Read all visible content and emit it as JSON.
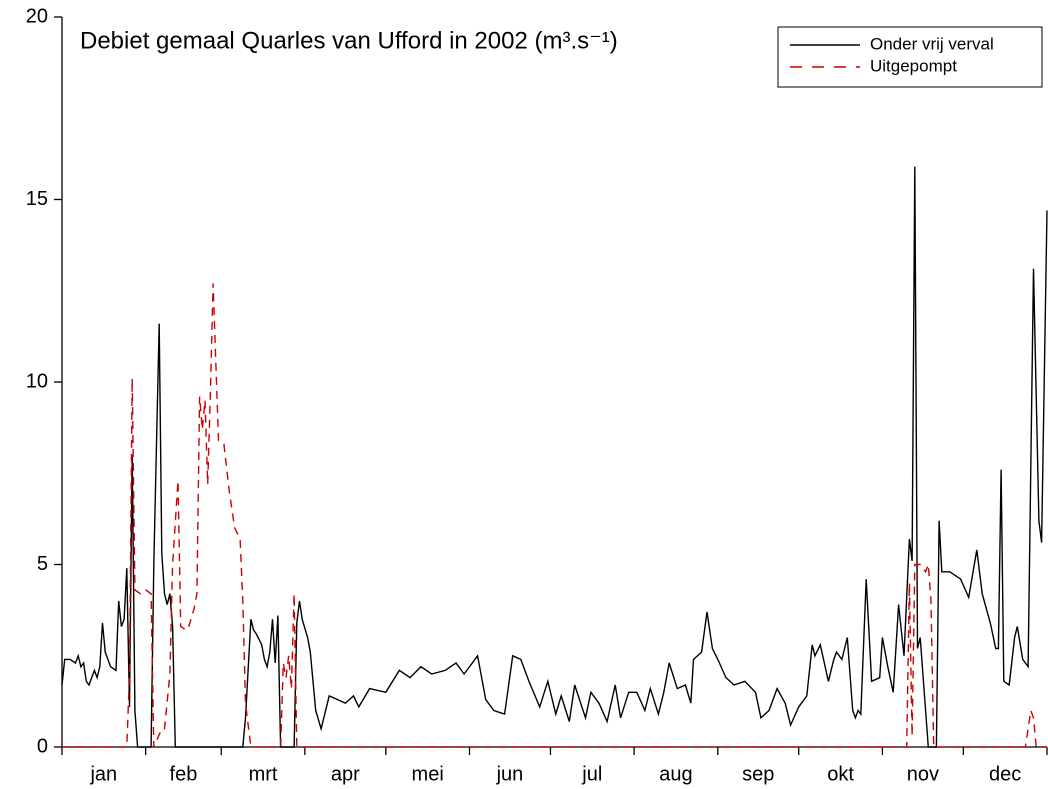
{
  "chart_data": {
    "type": "line",
    "title": "Debiet gemaal Quarles van Ufford in 2002 (m³.s⁻¹)",
    "xlim": [
      0,
      365
    ],
    "xticks": [
      {
        "value": 15.5,
        "label": "jan"
      },
      {
        "value": 45,
        "label": "feb"
      },
      {
        "value": 74.5,
        "label": "mrt"
      },
      {
        "value": 105,
        "label": "apr"
      },
      {
        "value": 135.5,
        "label": "mei"
      },
      {
        "value": 166,
        "label": "jun"
      },
      {
        "value": 196.5,
        "label": "jul"
      },
      {
        "value": 227.5,
        "label": "aug"
      },
      {
        "value": 258,
        "label": "sep"
      },
      {
        "value": 288.5,
        "label": "okt"
      },
      {
        "value": 319,
        "label": "nov"
      },
      {
        "value": 349.5,
        "label": "dec"
      }
    ],
    "xtick_marks": [
      0,
      31,
      59,
      90,
      120,
      151,
      181,
      212,
      243,
      273,
      304,
      334,
      365
    ],
    "ylim": [
      0,
      20
    ],
    "yticks": [
      0,
      5,
      10,
      15,
      20
    ],
    "legend": "upper right",
    "series": [
      {
        "name": "Onder vrij verval",
        "color": "#000000",
        "style": "solid",
        "x": [
          0,
          1,
          3,
          5,
          6,
          7,
          8,
          9,
          10,
          11,
          12,
          13,
          14,
          15,
          16,
          18,
          20,
          21,
          22,
          23,
          24,
          25,
          26,
          27,
          28,
          33,
          34,
          36,
          37,
          38,
          39,
          40,
          41,
          42,
          67,
          68,
          70,
          71,
          72,
          74,
          75,
          76,
          77,
          78,
          79,
          80,
          81,
          86,
          87,
          88,
          89,
          91,
          92,
          93,
          94,
          96,
          99,
          105,
          108,
          110,
          114,
          120,
          125,
          129,
          133,
          137,
          142,
          146,
          149,
          154,
          157,
          160,
          164,
          167,
          170,
          173,
          177,
          180,
          183,
          185,
          188,
          190,
          194,
          196,
          199,
          202,
          205,
          207,
          210,
          213,
          216,
          218,
          221,
          223,
          225,
          228,
          231,
          233,
          234,
          237,
          239,
          241,
          243,
          246,
          249,
          253,
          257,
          259,
          262,
          265,
          268,
          270,
          273,
          276,
          278,
          279,
          281,
          284,
          286,
          287,
          289,
          291,
          293,
          294,
          295,
          296,
          298,
          300,
          303,
          304,
          306,
          308,
          310,
          312,
          314,
          315,
          316,
          317,
          318,
          320,
          321,
          324,
          325,
          326,
          329,
          333,
          336,
          339,
          341,
          344,
          346,
          347,
          348,
          349,
          351,
          353,
          354,
          356,
          358,
          360,
          362,
          363,
          365
        ],
        "values": [
          1.7,
          2.4,
          2.4,
          2.3,
          2.5,
          2.2,
          2.3,
          1.8,
          1.7,
          1.9,
          2.1,
          1.9,
          2.2,
          3.4,
          2.6,
          2.2,
          2.1,
          4.0,
          3.3,
          3.5,
          4.9,
          1.1,
          8.0,
          1.0,
          0,
          0,
          5.0,
          11.6,
          5.3,
          4.2,
          3.9,
          4.2,
          3.3,
          0,
          0,
          0.8,
          3.5,
          3.2,
          3.1,
          2.8,
          2.4,
          2.2,
          2.6,
          3.5,
          2.3,
          3.6,
          0,
          0,
          3.4,
          4.0,
          3.5,
          3.0,
          2.6,
          1.8,
          1.0,
          0.5,
          1.4,
          1.2,
          1.4,
          1.1,
          1.6,
          1.5,
          2.1,
          1.9,
          2.2,
          2.0,
          2.1,
          2.3,
          2.0,
          2.5,
          1.3,
          1.0,
          0.9,
          2.5,
          2.4,
          1.8,
          1.1,
          1.8,
          0.9,
          1.4,
          0.7,
          1.7,
          0.8,
          1.5,
          1.2,
          0.7,
          1.7,
          0.8,
          1.5,
          1.5,
          1.0,
          1.6,
          0.9,
          1.5,
          2.3,
          1.6,
          1.7,
          1.2,
          2.4,
          2.6,
          3.7,
          2.7,
          2.4,
          1.9,
          1.7,
          1.8,
          1.5,
          0.8,
          1.0,
          1.6,
          1.2,
          0.6,
          1.1,
          1.4,
          2.8,
          2.5,
          2.8,
          1.8,
          2.4,
          2.6,
          2.4,
          3.0,
          1.0,
          0.8,
          1.0,
          0.9,
          4.6,
          1.8,
          1.9,
          3.0,
          2.2,
          1.5,
          3.9,
          2.5,
          5.7,
          5.1,
          15.9,
          2.7,
          3.0,
          1.0,
          0,
          0,
          6.2,
          4.8,
          4.8,
          4.6,
          4.1,
          5.4,
          4.2,
          3.4,
          2.7,
          2.7,
          7.6,
          1.8,
          1.7,
          3.0,
          3.3,
          2.4,
          2.2,
          13.1,
          6.2,
          5.6,
          14.7
        ]
      },
      {
        "name": "Uitgepompt",
        "color": "#cc0000",
        "style": "dashed",
        "x": [
          0,
          24,
          25,
          26,
          27,
          29,
          31,
          33,
          34,
          37,
          38,
          40,
          41,
          43,
          44,
          46,
          47,
          49,
          50,
          51,
          52,
          53,
          54,
          55,
          56,
          58,
          60,
          62,
          64,
          66,
          67,
          68,
          70,
          81,
          82,
          83,
          84,
          85,
          86,
          87,
          313,
          314,
          315,
          316,
          318,
          320,
          321,
          322,
          323,
          357,
          359,
          360,
          361,
          365
        ],
        "values": [
          0,
          0,
          2.0,
          10.1,
          4.3,
          4.2,
          4.3,
          4.2,
          0,
          0.5,
          0.5,
          2.0,
          5.0,
          7.3,
          3.3,
          3.2,
          3.3,
          3.8,
          4.2,
          9.6,
          8.7,
          9.5,
          7.2,
          9.7,
          12.7,
          8.4,
          8.3,
          7.0,
          6.0,
          5.7,
          4.0,
          1.2,
          0,
          0,
          2.3,
          1.9,
          2.5,
          1.6,
          4.2,
          0,
          0,
          4.5,
          0.3,
          5.0,
          5.0,
          4.8,
          5.0,
          4.0,
          0,
          0,
          1.0,
          0.8,
          0,
          0
        ]
      }
    ]
  }
}
